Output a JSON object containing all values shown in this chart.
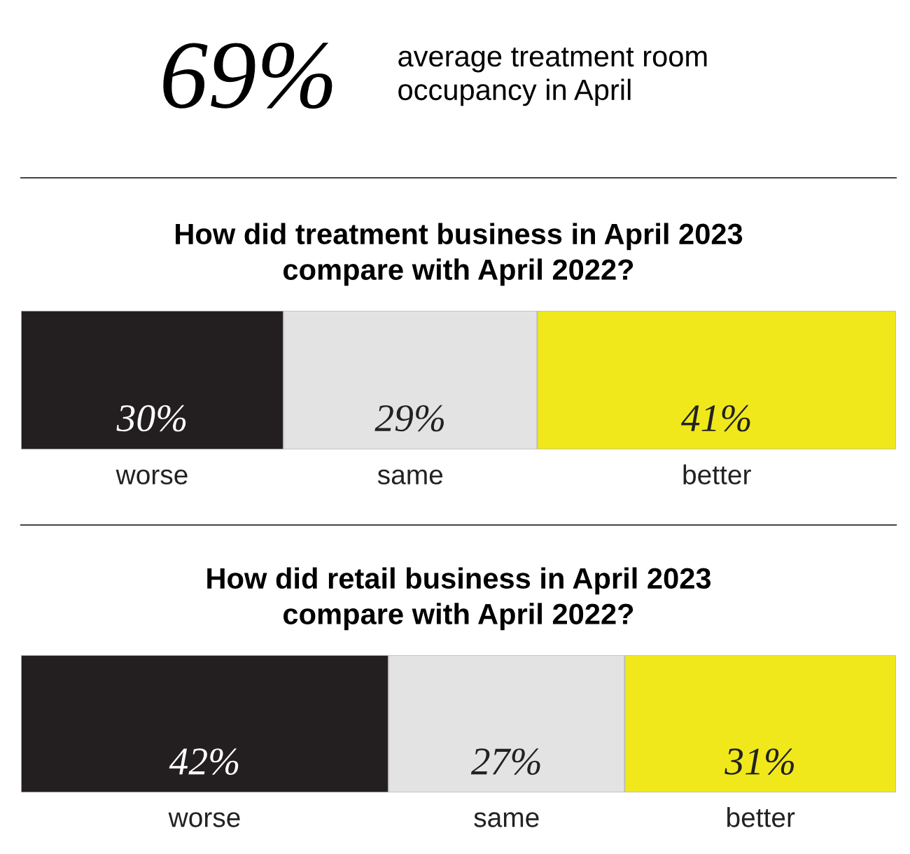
{
  "chart_data": [
    {
      "type": "other",
      "title": "69%",
      "subtitle": "average treatment room\noccupancy in April"
    },
    {
      "type": "bar",
      "orientation": "horizontal",
      "stacked": true,
      "title": "How did treatment business in April 2023\ncompare with April 2022?",
      "categories": [
        null
      ],
      "xlim": [
        0,
        100
      ],
      "tick_labels": false,
      "series": [
        {
          "name": "worse",
          "color": "#231f20",
          "values": [
            30
          ],
          "value_labels": [
            "30%"
          ]
        },
        {
          "name": "same",
          "color": "#e3e3e3",
          "values": [
            29
          ],
          "value_labels": [
            "29%"
          ]
        },
        {
          "name": "better",
          "color": "#f0e81a",
          "values": [
            41
          ],
          "value_labels": [
            "41%"
          ]
        }
      ]
    },
    {
      "type": "bar",
      "orientation": "horizontal",
      "stacked": true,
      "title": "How did retail business in April 2023\ncompare with April 2022?",
      "categories": [
        null
      ],
      "xlim": [
        0,
        100
      ],
      "tick_labels": false,
      "series": [
        {
          "name": "worse",
          "color": "#231f20",
          "values": [
            42
          ],
          "value_labels": [
            "42%"
          ]
        },
        {
          "name": "same",
          "color": "#e3e3e3",
          "values": [
            27
          ],
          "value_labels": [
            "27%"
          ]
        },
        {
          "name": "better",
          "color": "#f0e81a",
          "values": [
            31
          ],
          "value_labels": [
            "31%"
          ]
        }
      ]
    }
  ]
}
